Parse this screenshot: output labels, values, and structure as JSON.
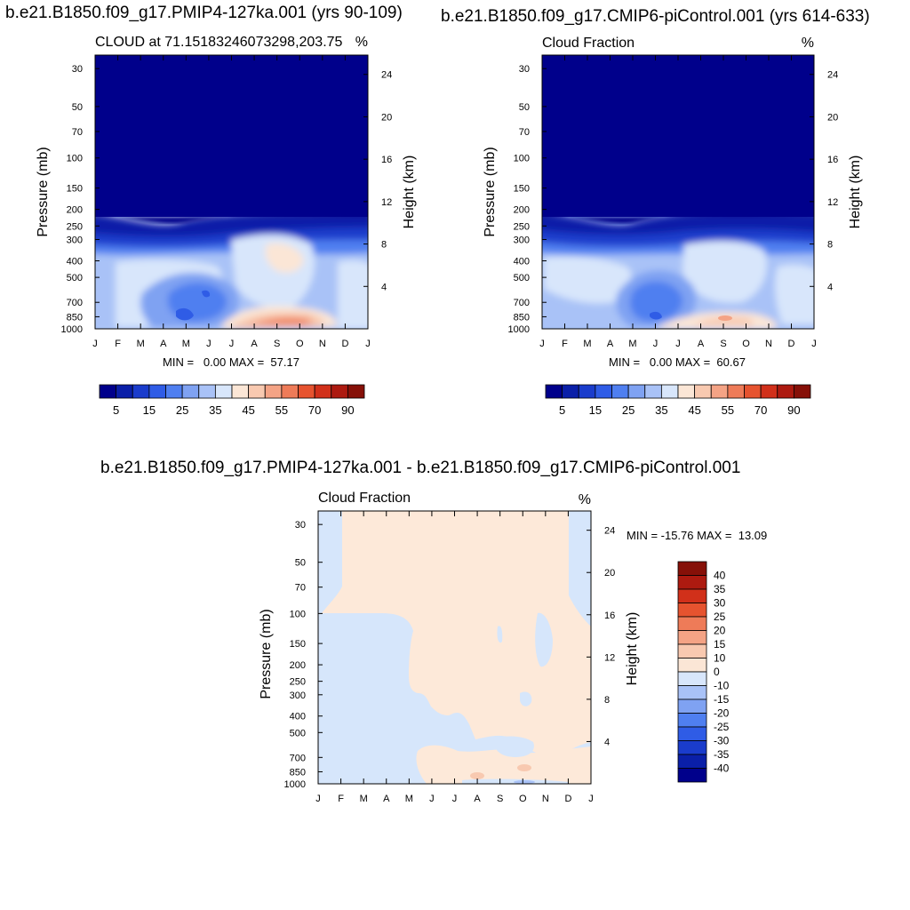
{
  "colors": {
    "blue_scale": [
      "#00008b",
      "#0a1fa8",
      "#1a3ccc",
      "#2f5ce6",
      "#4f7ff0",
      "#7fa2f2",
      "#a9c2f7",
      "#d8e6fb"
    ],
    "red_scale": [
      "#fbe6d6",
      "#f8c9b0",
      "#f4a385",
      "#ee7b58",
      "#e6532f",
      "#d1301a",
      "#ad1a10",
      "#861008"
    ],
    "diff_blue": "#d6e6fb",
    "diff_red": "#fde9d9"
  },
  "figure_titles": {
    "panel_a": "b.e21.B1850.f09_g17.PMIP4-127ka.001 (yrs 90-109)",
    "panel_b": "b.e21.B1850.f09_g17.CMIP6-piControl.001 (yrs 614-633)",
    "panel_c": "b.e21.B1850.f09_g17.PMIP4-127ka.001 - b.e21.B1850.f09_g17.CMIP6-piControl.001"
  },
  "chart_data": [
    {
      "type": "heatmap",
      "id": "panel_a",
      "subtitle_left": "CLOUD at 71.15183246073298,203.75",
      "subtitle_right": "%",
      "ylabel": "Pressure (mb)",
      "ylabel_right": "Height (km)",
      "x_ticks": [
        "J",
        "F",
        "M",
        "A",
        "M",
        "J",
        "J",
        "A",
        "S",
        "O",
        "N",
        "D",
        "J"
      ],
      "y_ticks": [
        "30",
        "50",
        "70",
        "100",
        "150",
        "200",
        "250",
        "300",
        "400",
        "500",
        "700",
        "850",
        "1000"
      ],
      "y_ticks_right": [
        "24",
        "20",
        "16",
        "12",
        "8",
        "4"
      ],
      "stats": "MIN =   0.00 MAX =  57.17",
      "min": 0.0,
      "max": 57.17,
      "colorbar_labels": [
        "5",
        "15",
        "25",
        "35",
        "45",
        "55",
        "70",
        "90"
      ]
    },
    {
      "type": "heatmap",
      "id": "panel_b",
      "subtitle_left": "Cloud Fraction",
      "subtitle_right": "%",
      "ylabel": "Pressure (mb)",
      "ylabel_right": "Height (km)",
      "x_ticks": [
        "J",
        "F",
        "M",
        "A",
        "M",
        "J",
        "J",
        "A",
        "S",
        "O",
        "N",
        "D",
        "J"
      ],
      "y_ticks": [
        "30",
        "50",
        "70",
        "100",
        "150",
        "200",
        "250",
        "300",
        "400",
        "500",
        "700",
        "850",
        "1000"
      ],
      "y_ticks_right": [
        "24",
        "20",
        "16",
        "12",
        "8",
        "4"
      ],
      "stats": "MIN =   0.00 MAX =  60.67",
      "min": 0.0,
      "max": 60.67,
      "colorbar_labels": [
        "5",
        "15",
        "25",
        "35",
        "45",
        "55",
        "70",
        "90"
      ]
    },
    {
      "type": "heatmap",
      "id": "panel_c",
      "subtitle_left": "Cloud Fraction",
      "subtitle_right": "%",
      "ylabel": "Pressure (mb)",
      "ylabel_right": "Height (km)",
      "x_ticks": [
        "J",
        "F",
        "M",
        "A",
        "M",
        "J",
        "J",
        "A",
        "S",
        "O",
        "N",
        "D",
        "J"
      ],
      "y_ticks": [
        "30",
        "50",
        "70",
        "100",
        "150",
        "200",
        "250",
        "300",
        "400",
        "500",
        "700",
        "850",
        "1000"
      ],
      "y_ticks_right": [
        "24",
        "20",
        "16",
        "12",
        "8",
        "4"
      ],
      "stats": "MIN = -15.76 MAX =  13.09",
      "min": -15.76,
      "max": 13.09,
      "colorbar_labels": [
        "40",
        "35",
        "30",
        "25",
        "20",
        "15",
        "10",
        "0",
        "-10",
        "-15",
        "-20",
        "-25",
        "-30",
        "-35",
        "-40"
      ]
    }
  ]
}
